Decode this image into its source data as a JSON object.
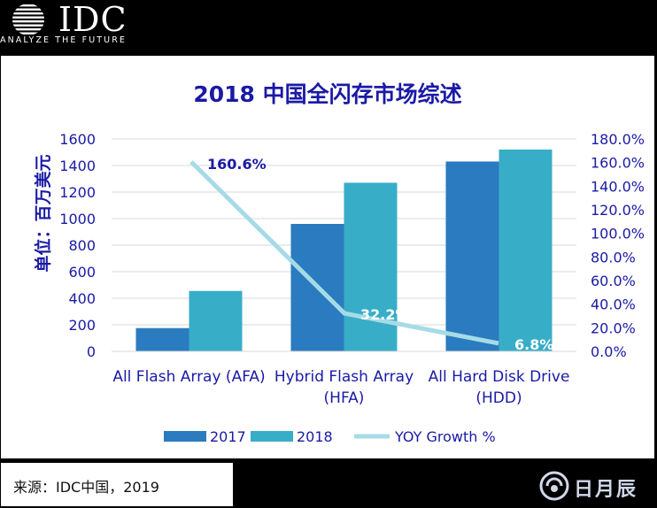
{
  "header": {
    "logo_text": "IDC",
    "tagline": "ANALYZE THE FUTURE"
  },
  "colors": {
    "series_2017": "#2a7bbf",
    "series_2018": "#38adc8",
    "yoy_line": "#a6dbe6",
    "title": "#1a1aa6",
    "axis_text": "#1a1aa6"
  },
  "chart_data": {
    "type": "bar",
    "title": "2018 中国全闪存市场综述",
    "ylabel": "单位：百万美元",
    "categories": [
      [
        "All Flash Array (AFA)"
      ],
      [
        "Hybrid Flash Array",
        "(HFA)"
      ],
      [
        "All Hard Disk Drive",
        "(HDD)"
      ]
    ],
    "series": [
      {
        "name": "2017",
        "values": [
          175,
          960,
          1430
        ]
      },
      {
        "name": "2018",
        "values": [
          455,
          1270,
          1520
        ]
      }
    ],
    "line_series": {
      "name": "YOY Growth %",
      "values": [
        160.6,
        32.2,
        6.8
      ],
      "labels": [
        "160.6%",
        "32.2%",
        "6.8%"
      ],
      "axis": "right"
    },
    "ylim": [
      0,
      1600
    ],
    "yticks": [
      "0",
      "200",
      "400",
      "600",
      "800",
      "1000",
      "1200",
      "1400",
      "1600"
    ],
    "y2lim": [
      0,
      180
    ],
    "y2ticks": [
      "0.0%",
      "20.0%",
      "40.0%",
      "60.0%",
      "80.0%",
      "100.0%",
      "120.0%",
      "140.0%",
      "160.0%",
      "180.0%"
    ],
    "grid": true,
    "legend_position": "bottom"
  },
  "footer": {
    "source": "来源：IDC中国，2019",
    "watermark": "日月辰"
  }
}
